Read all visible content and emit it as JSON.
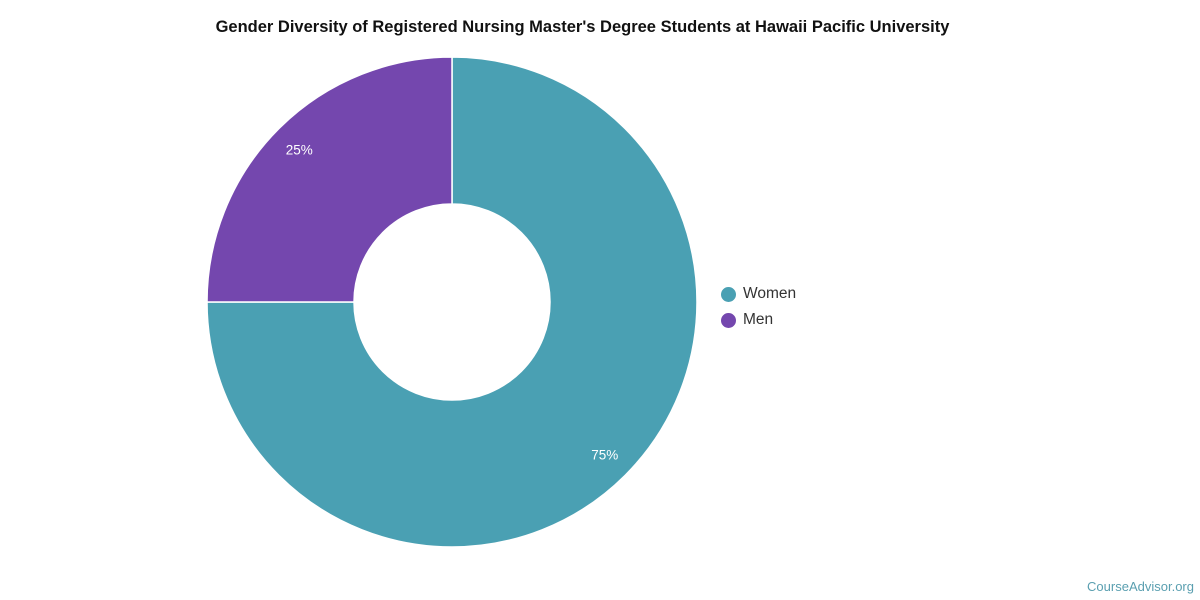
{
  "chart_data": {
    "type": "pie",
    "variant": "donut",
    "title": "Gender Diversity of Registered Nursing Master's Degree Students at Hawaii Pacific University",
    "slices": [
      {
        "name": "Women",
        "value": 75,
        "label": "75%",
        "color": "#4aa0b3"
      },
      {
        "name": "Men",
        "value": 25,
        "label": "25%",
        "color": "#7447ae"
      }
    ],
    "legend_position": "right"
  },
  "credit": "CourseAdvisor.org"
}
